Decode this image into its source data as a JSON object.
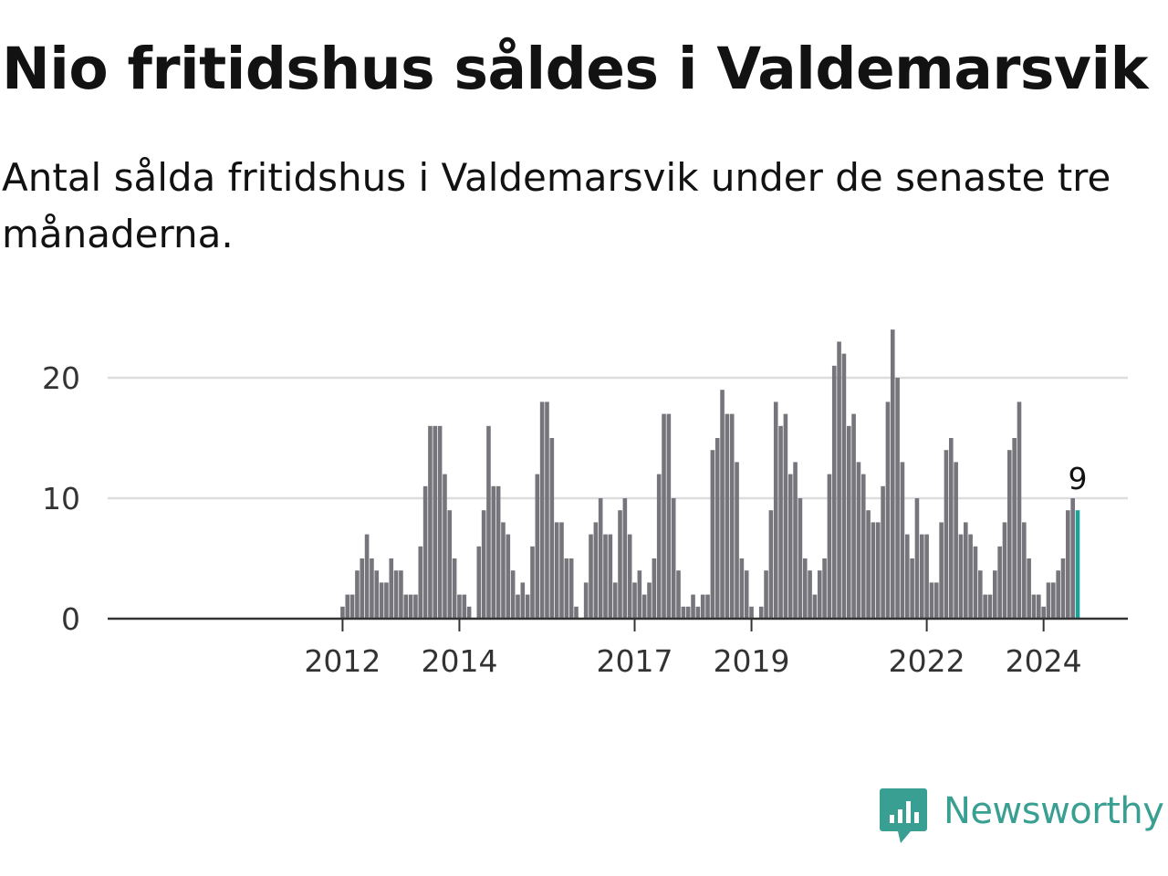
{
  "header": {
    "title": "Nio fritidshus såldes i Valdemarsvik",
    "subtitle": "Antal sålda fritidshus i Valdemarsvik under de senaste tre månaderna."
  },
  "brand": {
    "name": "Newsworthy",
    "color": "#3a9f93"
  },
  "colors": {
    "bar": "#76757b",
    "highlight": "#1aa29a",
    "grid": "#dddddd",
    "axis": "#333333"
  },
  "chart_data": {
    "type": "bar",
    "title": "Nio fritidshus såldes i Valdemarsvik",
    "subtitle": "Antal sålda fritidshus i Valdemarsvik under de senaste tre månaderna.",
    "x_period": "month",
    "x_start": "2011-10",
    "x_end": "2024-08",
    "ylim": [
      0,
      24
    ],
    "yticks": [
      0,
      10,
      20
    ],
    "xtick_labels": [
      "2012",
      "2014",
      "2017",
      "2019",
      "2022",
      "2024"
    ],
    "xtick_months": [
      "2012-01",
      "2014-01",
      "2017-01",
      "2019-01",
      "2022-01",
      "2024-01"
    ],
    "grid": true,
    "highlight_index": 154,
    "highlight_label": "9",
    "values": [
      0,
      0,
      0,
      1,
      2,
      2,
      4,
      5,
      7,
      5,
      4,
      3,
      3,
      5,
      4,
      4,
      2,
      2,
      2,
      6,
      11,
      16,
      16,
      16,
      12,
      9,
      5,
      2,
      2,
      1,
      0,
      6,
      9,
      16,
      11,
      11,
      8,
      7,
      4,
      2,
      3,
      2,
      6,
      12,
      18,
      18,
      15,
      8,
      8,
      5,
      5,
      1,
      0,
      3,
      7,
      8,
      10,
      7,
      7,
      3,
      9,
      10,
      7,
      3,
      4,
      2,
      3,
      5,
      12,
      17,
      17,
      10,
      4,
      1,
      1,
      2,
      1,
      2,
      2,
      14,
      15,
      19,
      17,
      17,
      13,
      5,
      4,
      1,
      0,
      1,
      4,
      9,
      18,
      16,
      17,
      12,
      13,
      10,
      5,
      4,
      2,
      4,
      5,
      12,
      21,
      23,
      22,
      16,
      17,
      13,
      12,
      9,
      8,
      8,
      11,
      18,
      24,
      20,
      13,
      7,
      5,
      10,
      7,
      7,
      3,
      3,
      8,
      14,
      15,
      13,
      7,
      8,
      7,
      6,
      4,
      2,
      2,
      4,
      6,
      8,
      14,
      15,
      18,
      8,
      5,
      2,
      2,
      1,
      3,
      3,
      4,
      5,
      9,
      10,
      9
    ]
  }
}
